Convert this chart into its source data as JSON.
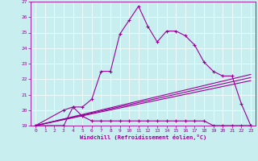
{
  "background_color": "#c8eef0",
  "line_color": "#990099",
  "xlim": [
    -0.5,
    23.5
  ],
  "ylim": [
    19,
    27
  ],
  "yticks": [
    19,
    20,
    21,
    22,
    23,
    24,
    25,
    26,
    27
  ],
  "xticks": [
    0,
    1,
    2,
    3,
    4,
    5,
    6,
    7,
    8,
    9,
    10,
    11,
    12,
    13,
    14,
    15,
    16,
    17,
    18,
    19,
    20,
    21,
    22,
    23
  ],
  "xlabel": "Windchill (Refroidissement éolien,°C)",
  "series1_x": [
    0,
    3,
    4,
    5,
    6,
    7,
    8,
    9,
    10,
    11,
    12,
    13,
    14,
    15,
    16,
    17,
    18,
    19,
    20,
    21,
    22,
    23
  ],
  "series1_y": [
    19.0,
    19.0,
    20.2,
    20.2,
    20.7,
    22.5,
    22.5,
    24.9,
    25.8,
    26.7,
    25.4,
    24.4,
    25.1,
    25.1,
    24.8,
    24.2,
    23.1,
    22.5,
    22.2,
    22.2,
    20.4,
    19.0
  ],
  "series2_x": [
    0,
    3,
    4,
    5,
    6,
    7,
    8,
    9,
    10,
    11,
    12,
    13,
    14,
    15,
    16,
    17,
    18,
    19,
    20,
    21,
    22,
    23
  ],
  "series2_y": [
    19.0,
    20.0,
    20.2,
    19.6,
    19.3,
    19.3,
    19.3,
    19.3,
    19.3,
    19.3,
    19.3,
    19.3,
    19.3,
    19.3,
    19.3,
    19.3,
    19.3,
    19.0,
    19.0,
    19.0,
    19.0,
    19.0
  ],
  "series3_x": [
    0,
    23
  ],
  "series3_y": [
    19.0,
    21.9
  ],
  "series4_x": [
    0,
    23
  ],
  "series4_y": [
    19.0,
    22.1
  ],
  "series5_x": [
    0,
    23
  ],
  "series5_y": [
    19.0,
    22.3
  ]
}
